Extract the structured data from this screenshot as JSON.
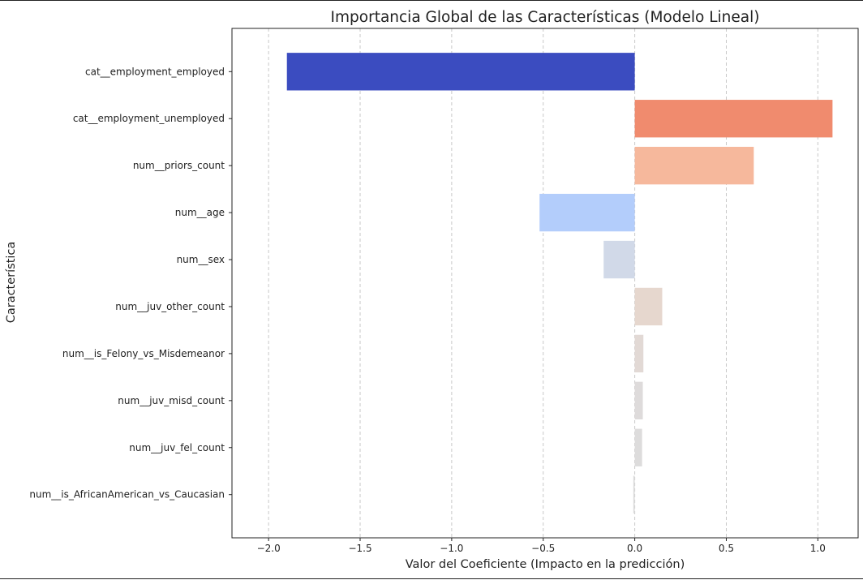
{
  "chart_data": {
    "type": "bar",
    "orientation": "horizontal",
    "title": "Importancia Global de las Características (Modelo Lineal)",
    "xlabel": "Valor del Coeficiente (Impacto en la predicción)",
    "ylabel": "Característica",
    "xlim": [
      -2.2,
      1.22
    ],
    "xticks": [
      -2.0,
      -1.5,
      -1.0,
      -0.5,
      0.0,
      0.5,
      1.0
    ],
    "xtick_labels": [
      "−2.0",
      "−1.5",
      "−1.0",
      "−0.5",
      "0.0",
      "0.5",
      "1.0"
    ],
    "grid": "vertical dashed",
    "legend": "none",
    "categories": [
      "cat__employment_employed",
      "cat__employment_unemployed",
      "num__priors_count",
      "num__age",
      "num__sex",
      "num__juv_other_count",
      "num__is_Felony_vs_Misdemeanor",
      "num__juv_misd_count",
      "num__juv_fel_count",
      "num__is_AfricanAmerican_vs_Caucasian"
    ],
    "values": [
      -1.9,
      1.08,
      0.65,
      -0.52,
      -0.17,
      0.15,
      0.047,
      0.044,
      0.04,
      -0.008
    ],
    "colors": [
      "#3b4cc0",
      "#f08b6e",
      "#f6b89c",
      "#b3cdfb",
      "#d1d9e8",
      "#e6d7ce",
      "#e2d9d5",
      "#dedbdb",
      "#dddcdc",
      "#dddddd"
    ]
  }
}
